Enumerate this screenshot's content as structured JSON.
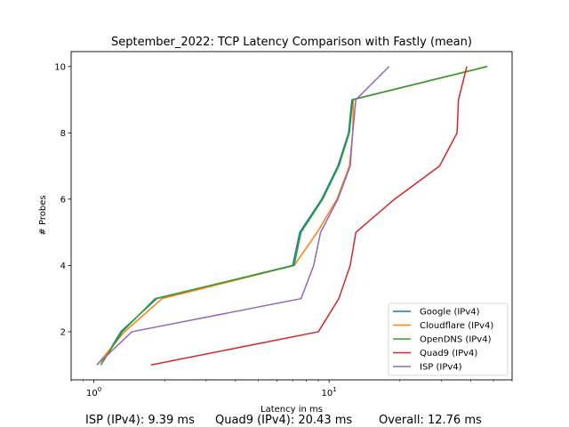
{
  "chart_data": {
    "type": "line",
    "title": "September_2022: TCP Latency Comparison with Fastly (mean)",
    "xlabel": "Latency in ms",
    "ylabel": "# Probes",
    "xscale": "log",
    "xlim": [
      0.8,
      60
    ],
    "ylim": [
      0.55,
      10.45
    ],
    "xticks": [
      {
        "value": 1,
        "label": "10^0"
      },
      {
        "value": 10,
        "label": "10^1"
      }
    ],
    "yticks": [
      2,
      4,
      6,
      8,
      10
    ],
    "grid": false,
    "legend_position": "lower right",
    "series": [
      {
        "name": "Google (IPv4)",
        "color": "#1f77b4",
        "x": [
          1.07,
          1.3,
          1.85,
          7.0,
          7.5,
          9.3,
          10.9,
          12.1,
          12.5,
          47.0
        ],
        "y": [
          1,
          2,
          3,
          4,
          5,
          6,
          7,
          8,
          9,
          10
        ]
      },
      {
        "name": "Cloudflare (IPv4)",
        "color": "#ff7f0e",
        "x": [
          1.03,
          1.35,
          1.95,
          7.1,
          8.9,
          10.8,
          12.2,
          12.6,
          12.7,
          47.0
        ],
        "y": [
          1,
          2,
          3,
          4,
          5,
          6,
          7,
          8,
          9,
          10
        ]
      },
      {
        "name": "OpenDNS (IPv4)",
        "color": "#2ca02c",
        "x": [
          1.07,
          1.32,
          1.82,
          7.1,
          7.6,
          9.4,
          11.0,
          12.2,
          12.6,
          47.0
        ],
        "y": [
          1,
          2,
          3,
          4,
          5,
          6,
          7,
          8,
          9,
          10
        ]
      },
      {
        "name": "Quad9 (IPv4)",
        "color": "#d62728",
        "x": [
          1.75,
          9.0,
          11.0,
          12.3,
          13.0,
          19.0,
          29.5,
          35.0,
          35.5,
          38.5
        ],
        "y": [
          1,
          2,
          3,
          4,
          5,
          6,
          7,
          8,
          9,
          10
        ]
      },
      {
        "name": "ISP (IPv4)",
        "color": "#9467bd",
        "x": [
          1.03,
          1.45,
          7.6,
          8.6,
          9.2,
          10.9,
          12.3,
          12.6,
          13.0,
          18.0
        ],
        "y": [
          1,
          2,
          3,
          4,
          5,
          6,
          7,
          8,
          9,
          10
        ]
      }
    ]
  },
  "footer": {
    "isp": "ISP (IPv4): 9.39 ms",
    "quad9": "Quad9 (IPv4): 20.43 ms",
    "overall": "Overall: 12.76 ms"
  }
}
